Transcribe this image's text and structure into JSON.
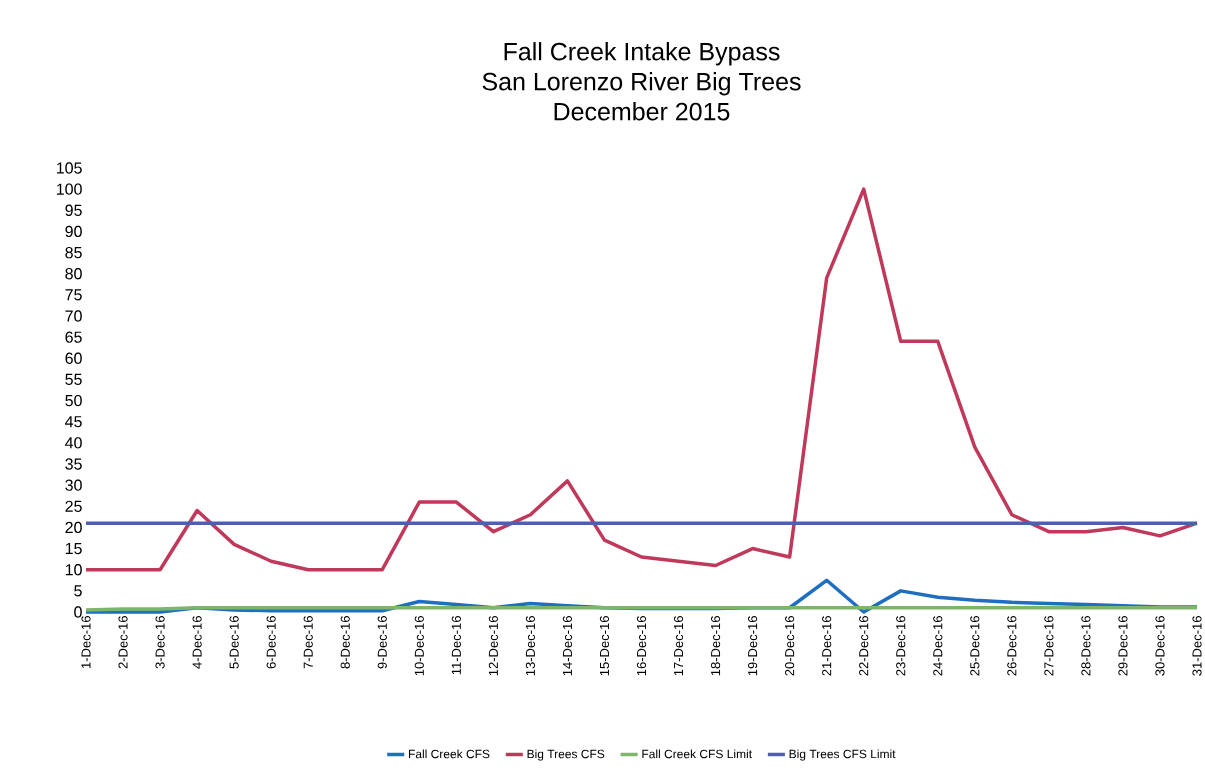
{
  "chart_data": {
    "type": "line",
    "title": "Fall Creek Intake Bypass\nSan Lorenzo River Big Trees\nDecember 2015",
    "categories": [
      "1-Dec-16",
      "2-Dec-16",
      "3-Dec-16",
      "4-Dec-16",
      "5-Dec-16",
      "6-Dec-16",
      "7-Dec-16",
      "8-Dec-16",
      "9-Dec-16",
      "10-Dec-16",
      "11-Dec-16",
      "12-Dec-16",
      "13-Dec-16",
      "14-Dec-16",
      "15-Dec-16",
      "16-Dec-16",
      "17-Dec-16",
      "18-Dec-16",
      "19-Dec-16",
      "20-Dec-16",
      "21-Dec-16",
      "22-Dec-16",
      "23-Dec-16",
      "24-Dec-16",
      "25-Dec-16",
      "26-Dec-16",
      "27-Dec-16",
      "28-Dec-16",
      "29-Dec-16",
      "30-Dec-16",
      "31-Dec-16"
    ],
    "series": [
      {
        "name": "Fall Creek CFS",
        "color": "#1f6fc0",
        "values": [
          0,
          0,
          0,
          1,
          0.5,
          0.3,
          0.3,
          0.3,
          0.3,
          2.5,
          1.8,
          1,
          2,
          1.5,
          1,
          0.8,
          0.8,
          0.8,
          1,
          1,
          7.5,
          0,
          5,
          3.5,
          2.8,
          2.3,
          2,
          1.8,
          1.5,
          1.2,
          1.2
        ]
      },
      {
        "name": "Big Trees CFS",
        "color": "#c0395a",
        "values": [
          10,
          10,
          10,
          24,
          16,
          12,
          10,
          10,
          10,
          26,
          26,
          19,
          23,
          31,
          17,
          13,
          12,
          11,
          15,
          13,
          79,
          100,
          64,
          64,
          39,
          23,
          19,
          19,
          20,
          18,
          21
        ]
      },
      {
        "name": "Fall Creek CFS Limit",
        "color": "#7db56b",
        "values": [
          0.5,
          0.7,
          0.7,
          1,
          1,
          1,
          1,
          1,
          1,
          1,
          1,
          1,
          1,
          1,
          1,
          1,
          1,
          1,
          1,
          1,
          1,
          1,
          1,
          1,
          1,
          1,
          1,
          1,
          1,
          1,
          1
        ]
      },
      {
        "name": "Big Trees CFS Limit",
        "color": "#5060a8",
        "values": [
          21,
          21,
          21,
          21,
          21,
          21,
          21,
          21,
          21,
          21,
          21,
          21,
          21,
          21,
          21,
          21,
          21,
          21,
          21,
          21,
          21,
          21,
          21,
          21,
          21,
          21,
          21,
          21,
          21,
          21,
          21
        ]
      }
    ],
    "ylim": [
      0,
      105
    ],
    "yticks": [
      0,
      5,
      10,
      15,
      20,
      25,
      30,
      35,
      40,
      45,
      50,
      55,
      60,
      65,
      70,
      75,
      80,
      85,
      90,
      95,
      100,
      105
    ],
    "grid": false,
    "legend": "bottom",
    "marker": "none",
    "line_style": "solid"
  }
}
